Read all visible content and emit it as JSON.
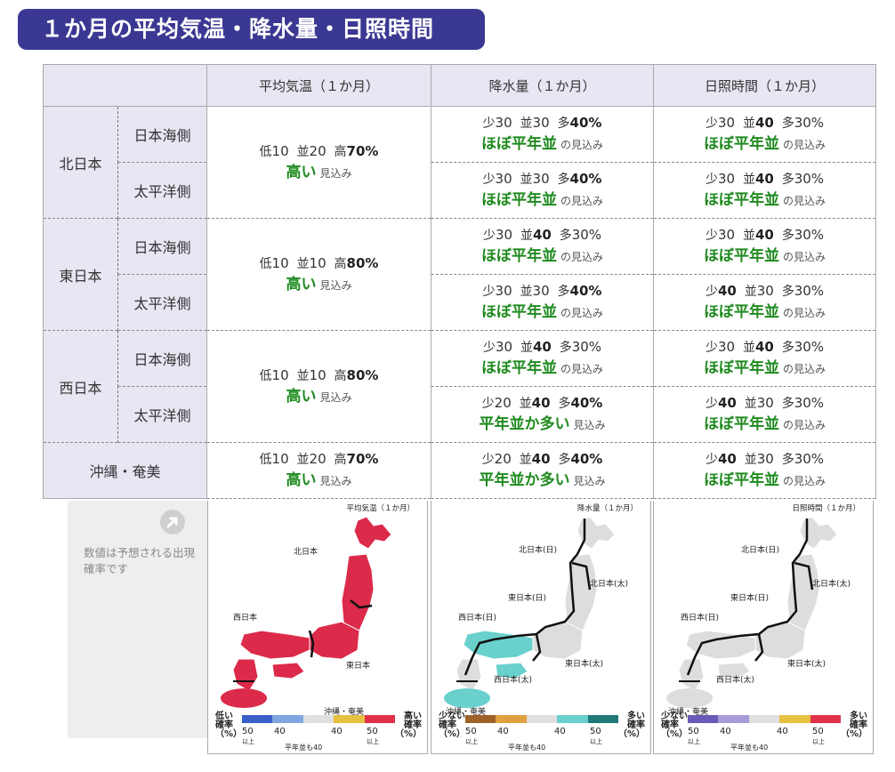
{
  "title": "１か月の平均気温・降水量・日照時間",
  "headers": [
    "平均気温（１か月）",
    "降水量（１か月）",
    "日照時間（１か月）"
  ],
  "regions": [
    {
      "name": "北日本",
      "subs": [
        {
          "name": "日本海側",
          "prec": {
            "low_label": "少",
            "low": "30",
            "mid_label": "並",
            "mid": "30",
            "high_label": "多",
            "high": "40%",
            "bold": "high",
            "outlook": "ほぼ平年並",
            "suffix": "の見込み"
          },
          "sun": {
            "low_label": "少",
            "low": "30",
            "mid_label": "並",
            "mid": "40",
            "high_label": "多",
            "high": "30%",
            "bold": "mid",
            "outlook": "ほぼ平年並",
            "suffix": "の見込み"
          }
        },
        {
          "name": "太平洋側",
          "prec": {
            "low_label": "少",
            "low": "30",
            "mid_label": "並",
            "mid": "30",
            "high_label": "多",
            "high": "40%",
            "bold": "high",
            "outlook": "ほぼ平年並",
            "suffix": "の見込み"
          },
          "sun": {
            "low_label": "少",
            "low": "30",
            "mid_label": "並",
            "mid": "40",
            "high_label": "多",
            "high": "30%",
            "bold": "mid",
            "outlook": "ほぼ平年並",
            "suffix": "の見込み"
          }
        }
      ],
      "temp": {
        "low_label": "低",
        "low": "10",
        "mid_label": "並",
        "mid": "20",
        "high_label": "高",
        "high": "70%",
        "bold": "high",
        "outlook": "高い",
        "suffix": "見込み"
      }
    },
    {
      "name": "東日本",
      "subs": [
        {
          "name": "日本海側",
          "prec": {
            "low_label": "少",
            "low": "30",
            "mid_label": "並",
            "mid": "40",
            "high_label": "多",
            "high": "30%",
            "bold": "mid",
            "outlook": "ほぼ平年並",
            "suffix": "の見込み"
          },
          "sun": {
            "low_label": "少",
            "low": "30",
            "mid_label": "並",
            "mid": "40",
            "high_label": "多",
            "high": "30%",
            "bold": "mid",
            "outlook": "ほぼ平年並",
            "suffix": "の見込み"
          }
        },
        {
          "name": "太平洋側",
          "prec": {
            "low_label": "少",
            "low": "30",
            "mid_label": "並",
            "mid": "30",
            "high_label": "多",
            "high": "40%",
            "bold": "high",
            "outlook": "ほぼ平年並",
            "suffix": "の見込み"
          },
          "sun": {
            "low_label": "少",
            "low": "40",
            "mid_label": "並",
            "mid": "30",
            "high_label": "多",
            "high": "30%",
            "bold": "low",
            "outlook": "ほぼ平年並",
            "suffix": "の見込み"
          }
        }
      ],
      "temp": {
        "low_label": "低",
        "low": "10",
        "mid_label": "並",
        "mid": "10",
        "high_label": "高",
        "high": "80%",
        "bold": "high",
        "outlook": "高い",
        "suffix": "見込み"
      }
    },
    {
      "name": "西日本",
      "subs": [
        {
          "name": "日本海側",
          "prec": {
            "low_label": "少",
            "low": "30",
            "mid_label": "並",
            "mid": "40",
            "high_label": "多",
            "high": "30%",
            "bold": "mid",
            "outlook": "ほぼ平年並",
            "suffix": "の見込み"
          },
          "sun": {
            "low_label": "少",
            "low": "30",
            "mid_label": "並",
            "mid": "40",
            "high_label": "多",
            "high": "30%",
            "bold": "mid",
            "outlook": "ほぼ平年並",
            "suffix": "の見込み"
          }
        },
        {
          "name": "太平洋側",
          "prec": {
            "low_label": "少",
            "low": "20",
            "mid_label": "並",
            "mid": "40",
            "high_label": "多",
            "high": "40%",
            "bold": "midhigh",
            "outlook": "平年並か多い",
            "suffix": "見込み"
          },
          "sun": {
            "low_label": "少",
            "low": "40",
            "mid_label": "並",
            "mid": "30",
            "high_label": "多",
            "high": "30%",
            "bold": "low",
            "outlook": "ほぼ平年並",
            "suffix": "の見込み"
          }
        }
      ],
      "temp": {
        "low_label": "低",
        "low": "10",
        "mid_label": "並",
        "mid": "10",
        "high_label": "高",
        "high": "80%",
        "bold": "high",
        "outlook": "高い",
        "suffix": "見込み"
      }
    }
  ],
  "okinawa": {
    "name": "沖縄・奄美",
    "temp": {
      "low_label": "低",
      "low": "10",
      "mid_label": "並",
      "mid": "20",
      "high_label": "高",
      "high": "70%",
      "bold": "high",
      "outlook": "高い",
      "suffix": "見込み"
    },
    "prec": {
      "low_label": "少",
      "low": "20",
      "mid_label": "並",
      "mid": "40",
      "high_label": "多",
      "high": "40%",
      "bold": "midhigh",
      "outlook": "平年並か多い",
      "suffix": "見込み"
    },
    "sun": {
      "low_label": "少",
      "low": "40",
      "mid_label": "並",
      "mid": "30",
      "high_label": "多",
      "high": "30%",
      "bold": "low",
      "outlook": "ほぼ平年並",
      "suffix": "の見込み"
    }
  },
  "note": "数値は予想される出現確率です",
  "maps": [
    {
      "title": "平均気温（１か月）",
      "labels": [
        "北日本",
        "西日本",
        "東日本",
        "沖縄・奄美"
      ],
      "legend_left": [
        "低い",
        "確率",
        "（%）"
      ],
      "legend_right": [
        "高い",
        "確率",
        "（%）"
      ],
      "colors": [
        "#3a5fc8",
        "#7fa6e0",
        "#e0e0e0",
        "#e8c040",
        "#e0304a"
      ],
      "fill": "#dc2a4a",
      "okinawa_fill": "#dc2a4a"
    },
    {
      "title": "降水量（１か月）",
      "labels": [
        "北日本(日)",
        "北日本(太)",
        "東日本(日)",
        "西日本(日)",
        "東日本(太)",
        "西日本(太)",
        "沖縄・奄美"
      ],
      "legend_left": [
        "少ない",
        "確率",
        "（%）"
      ],
      "legend_right": [
        "多い",
        "確率",
        "（%）"
      ],
      "colors": [
        "#a0602a",
        "#e0a040",
        "#e0e0e0",
        "#6ad0cc",
        "#1f7a78"
      ],
      "fill": "#dddddd",
      "okinawa_fill": "#6ad0cc"
    },
    {
      "title": "日照時間（１か月）",
      "labels": [
        "北日本(日)",
        "北日本(太)",
        "東日本(日)",
        "西日本(日)",
        "東日本(太)",
        "西日本(太)",
        "沖縄・奄美"
      ],
      "legend_left": [
        "少ない",
        "確率",
        "（%）"
      ],
      "legend_right": [
        "多い",
        "確率",
        "（%）"
      ],
      "colors": [
        "#6a5ab8",
        "#a89ad8",
        "#e0e0e0",
        "#e8c040",
        "#e0304a"
      ],
      "fill": "#dddddd",
      "okinawa_fill": "#dddddd"
    }
  ],
  "legend_ticks": [
    "50",
    "40",
    "40",
    "50"
  ],
  "legend_sub": [
    "以上",
    "以上"
  ],
  "legend_mid": "平年並も40"
}
